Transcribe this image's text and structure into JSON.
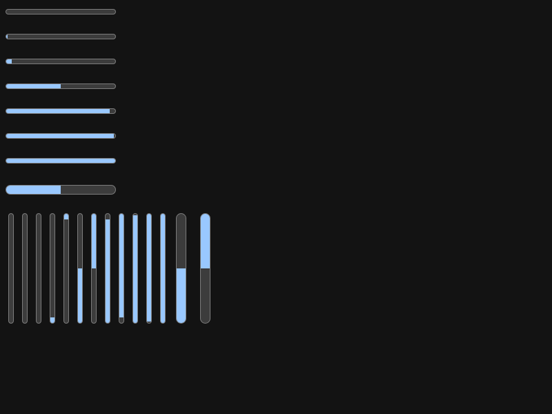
{
  "colors": {
    "background": "#131313",
    "track": "#3c3c3c",
    "border": "#7c7c7c",
    "fill": "#99c8ff"
  },
  "horizontal_bars": [
    {
      "name": "hbar-1",
      "value": 0.0,
      "size": "thin"
    },
    {
      "name": "hbar-2",
      "value": 0.01,
      "size": "thin"
    },
    {
      "name": "hbar-3",
      "value": 0.05,
      "size": "thin"
    },
    {
      "name": "hbar-4",
      "value": 0.5,
      "size": "thin"
    },
    {
      "name": "hbar-5",
      "value": 0.95,
      "size": "thin"
    },
    {
      "name": "hbar-6",
      "value": 0.99,
      "size": "thin"
    },
    {
      "name": "hbar-7",
      "value": 1.0,
      "size": "thin"
    },
    {
      "name": "hbar-8",
      "value": 0.5,
      "size": "thick"
    }
  ],
  "vertical_bars": [
    {
      "name": "vbar-1",
      "value": 0.0,
      "direction": "up",
      "size": "thin"
    },
    {
      "name": "vbar-2",
      "value": 0.0,
      "direction": "up",
      "size": "thin"
    },
    {
      "name": "vbar-3",
      "value": 0.0,
      "direction": "up",
      "size": "thin"
    },
    {
      "name": "vbar-4",
      "value": 0.05,
      "direction": "up",
      "size": "thin"
    },
    {
      "name": "vbar-5",
      "value": 0.05,
      "direction": "down",
      "size": "thin"
    },
    {
      "name": "vbar-6",
      "value": 0.5,
      "direction": "up",
      "size": "thin"
    },
    {
      "name": "vbar-7",
      "value": 0.5,
      "direction": "down",
      "size": "thin"
    },
    {
      "name": "vbar-8",
      "value": 0.95,
      "direction": "up",
      "size": "thin"
    },
    {
      "name": "vbar-9",
      "value": 0.95,
      "direction": "down",
      "size": "thin"
    },
    {
      "name": "vbar-10",
      "value": 0.99,
      "direction": "up",
      "size": "thin"
    },
    {
      "name": "vbar-11",
      "value": 0.99,
      "direction": "down",
      "size": "thin"
    },
    {
      "name": "vbar-12",
      "value": 1.0,
      "direction": "up",
      "size": "thin"
    },
    {
      "name": "vbar-13",
      "value": 0.5,
      "direction": "up",
      "size": "thick"
    },
    {
      "name": "vbar-14",
      "value": 0.5,
      "direction": "down",
      "size": "thick"
    }
  ]
}
